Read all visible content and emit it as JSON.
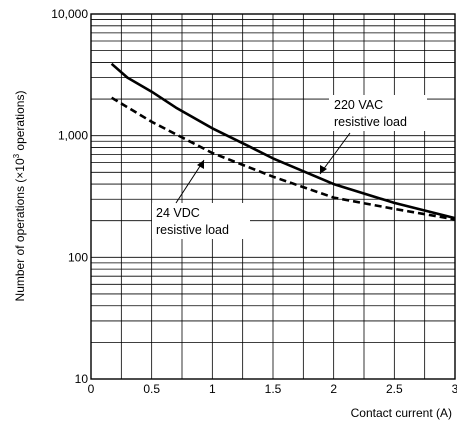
{
  "chart_data": {
    "type": "line",
    "xlabel": "Contact current (A)",
    "ylabel_parts": {
      "before": "Number of operations (×10",
      "superscript": "3",
      "after": " operations)"
    },
    "x_ticks": [
      "0",
      "0.5",
      "1",
      "1.5",
      "2",
      "2.5",
      "3"
    ],
    "y_ticks": [
      "10",
      "100",
      "1,000",
      "10,000"
    ],
    "xlim": [
      0,
      3
    ],
    "ylim": [
      10,
      10000
    ],
    "y_scale": "log",
    "grid": true,
    "series": [
      {
        "name_lines": [
          "220 VAC",
          "resistive load"
        ],
        "line_style": "solid",
        "color": "#000000",
        "x": [
          0.17,
          0.3,
          0.5,
          0.7,
          1.0,
          1.3,
          1.5,
          2.0,
          2.5,
          3.0
        ],
        "y": [
          3900,
          3000,
          2300,
          1700,
          1150,
          820,
          650,
          400,
          280,
          210
        ]
      },
      {
        "name_lines": [
          "24 VDC",
          "resistive load"
        ],
        "line_style": "dashed",
        "color": "#000000",
        "x": [
          0.17,
          0.5,
          1.0,
          1.5,
          2.0,
          2.5,
          3.0
        ],
        "y": [
          2050,
          1300,
          720,
          460,
          310,
          250,
          205
        ]
      }
    ]
  }
}
